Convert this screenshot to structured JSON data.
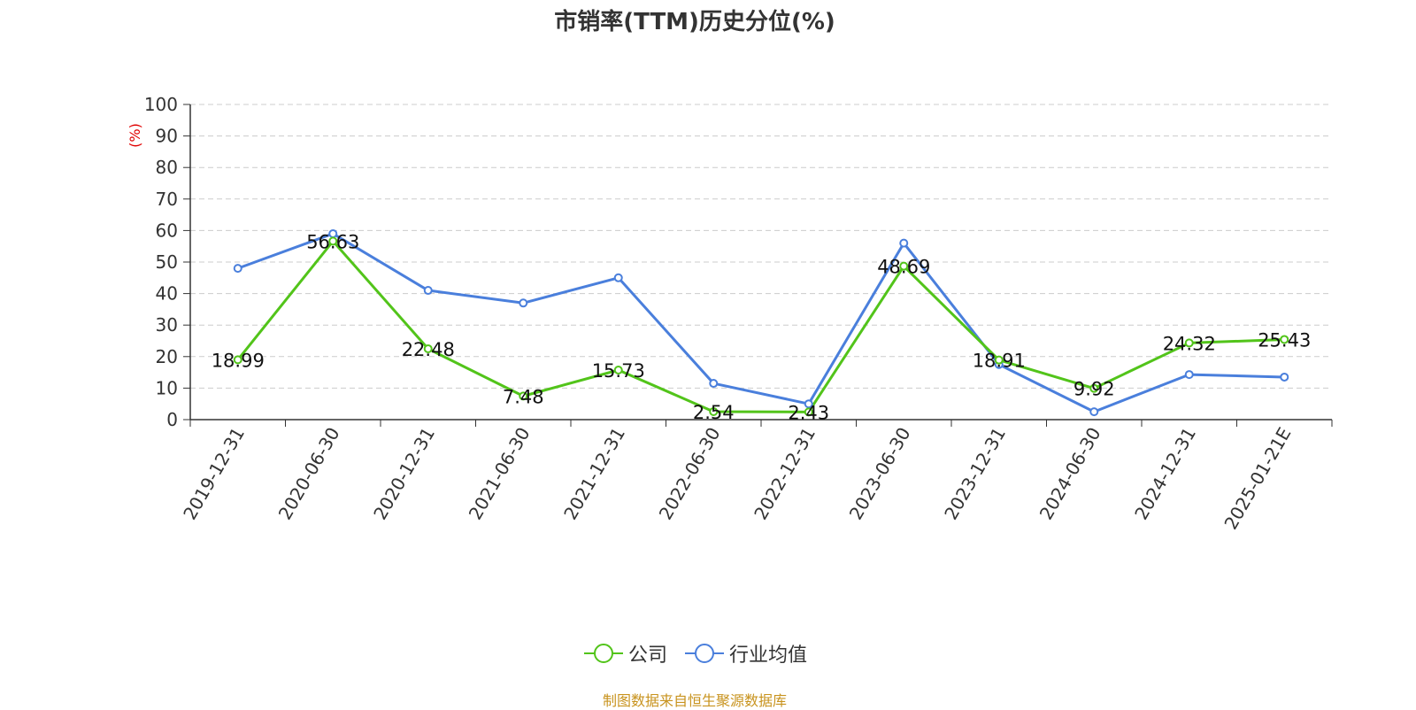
{
  "title": "市销率(TTM)历史分位(%)",
  "footer": "制图数据来自恒生聚源数据库",
  "colors": {
    "company": "#52c41a",
    "industry": "#4a7fdc",
    "ylabel": "#e00000"
  },
  "chart_data": {
    "type": "line",
    "title": "市销率(TTM)历史分位(%)",
    "ylabel": "(%)",
    "ylim": [
      0,
      100
    ],
    "yticks": [
      0,
      10,
      20,
      30,
      40,
      50,
      60,
      70,
      80,
      90,
      100
    ],
    "grid": true,
    "legend_position": "bottom",
    "categories": [
      "2019-12-31",
      "2020-06-30",
      "2020-12-31",
      "2021-06-30",
      "2021-12-31",
      "2022-06-30",
      "2022-12-31",
      "2023-06-30",
      "2023-12-31",
      "2024-06-30",
      "2024-12-31",
      "2025-01-21E"
    ],
    "series": [
      {
        "name": "公司",
        "values": [
          18.99,
          56.63,
          22.48,
          7.48,
          15.73,
          2.54,
          2.43,
          48.69,
          18.91,
          9.92,
          24.32,
          25.43
        ],
        "labels": [
          "18.99",
          "56.63",
          "22.48",
          "7.48",
          "15.73",
          "2.54",
          "2.43",
          "48.69",
          "18.91",
          "9.92",
          "24.32",
          "25.43"
        ]
      },
      {
        "name": "行业均值",
        "values": [
          48,
          59,
          41,
          37,
          45,
          11.5,
          5,
          56,
          17.5,
          2.5,
          14.3,
          13.5
        ]
      }
    ]
  }
}
